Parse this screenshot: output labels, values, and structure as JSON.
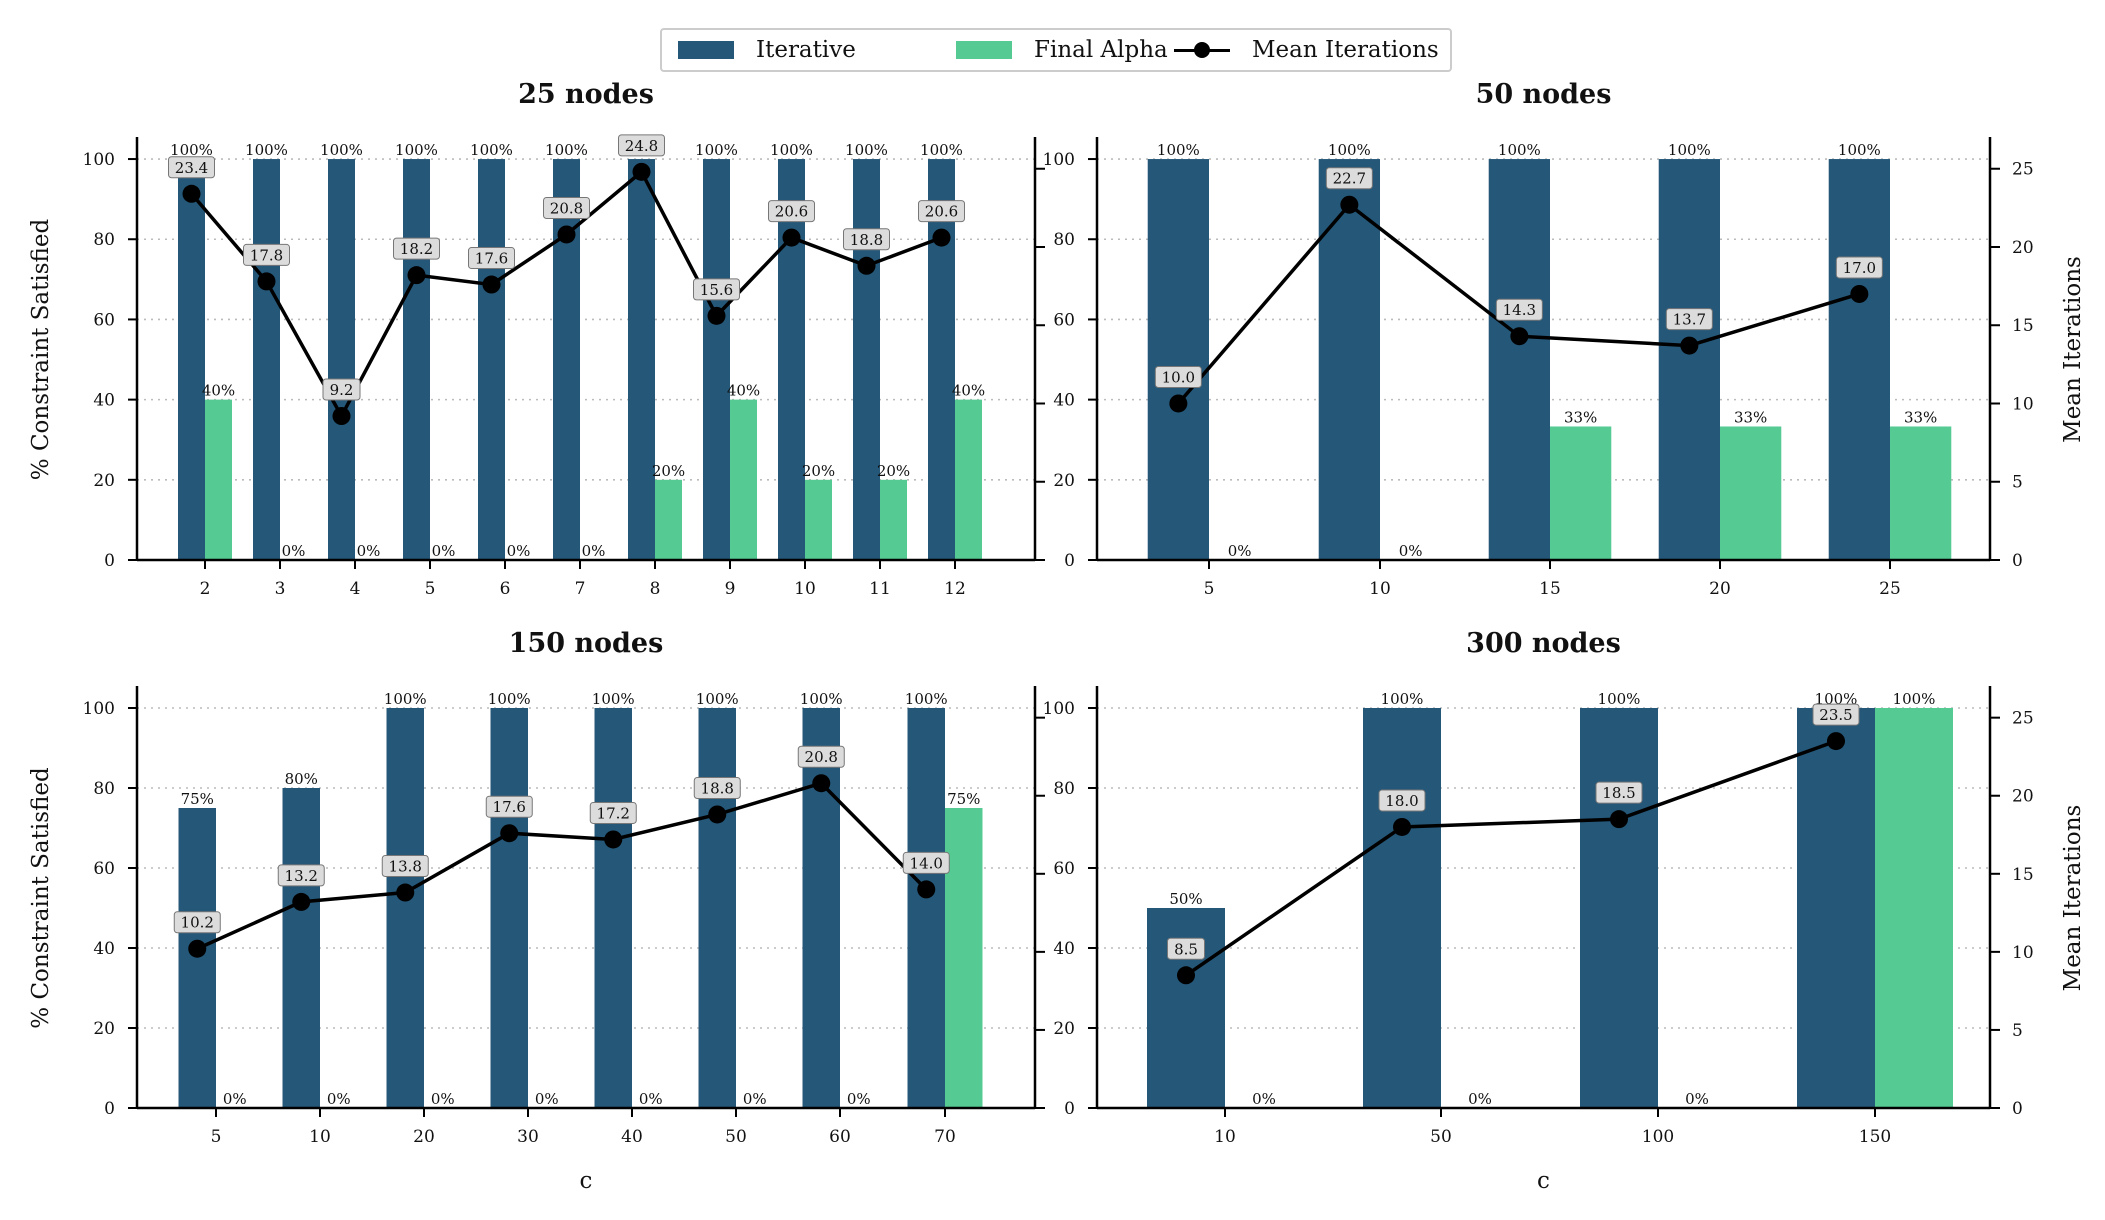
{
  "colors": {
    "iterative": "#245778",
    "final_alpha": "#55CB93",
    "line": "#000000"
  },
  "legend": {
    "iterative": "Iterative",
    "final_alpha": "Final Alpha",
    "mean_iterations": "Mean Iterations"
  },
  "chart_data": [
    {
      "type": "bar",
      "title": "25 nodes",
      "xlabel": "",
      "ylabel": "% Constraint Satisfied",
      "ylabel_right": "",
      "ylim": [
        0,
        105
      ],
      "yticks": [
        0,
        20,
        40,
        60,
        80,
        100
      ],
      "y2lim": [
        0,
        26.9
      ],
      "y2ticks": [
        0,
        5,
        10,
        15,
        20,
        25
      ],
      "categories": [
        "2",
        "3",
        "4",
        "5",
        "6",
        "7",
        "8",
        "9",
        "10",
        "11",
        "12"
      ],
      "series": [
        {
          "name": "Iterative",
          "values": [
            100,
            100,
            100,
            100,
            100,
            100,
            100,
            100,
            100,
            100,
            100
          ],
          "labels": [
            "100%",
            "100%",
            "100%",
            "100%",
            "100%",
            "100%",
            "100%",
            "100%",
            "100%",
            "100%",
            "100%"
          ]
        },
        {
          "name": "Final Alpha",
          "values": [
            40,
            0,
            0,
            0,
            0,
            0,
            20,
            40,
            20,
            20,
            40
          ],
          "labels": [
            "40%",
            "0%",
            "0%",
            "0%",
            "0%",
            "0%",
            "20%",
            "40%",
            "20%",
            "20%",
            "40%"
          ]
        },
        {
          "name": "Mean Iterations",
          "values": [
            23.4,
            17.8,
            9.2,
            18.2,
            17.6,
            20.8,
            24.8,
            15.6,
            20.6,
            18.8,
            20.6
          ],
          "labels": [
            "23.4",
            "17.8",
            "9.2",
            "18.2",
            "17.6",
            "20.8",
            "24.8",
            "15.6",
            "20.6",
            "18.8",
            "20.6"
          ]
        }
      ]
    },
    {
      "type": "bar",
      "title": "50 nodes",
      "xlabel": "",
      "ylabel": "",
      "ylabel_right": "Mean Iterations",
      "ylim": [
        0,
        105
      ],
      "yticks": [
        0,
        20,
        40,
        60,
        80,
        100
      ],
      "y2lim": [
        0,
        26.9
      ],
      "y2ticks": [
        0,
        5,
        10,
        15,
        20,
        25
      ],
      "categories": [
        "5",
        "10",
        "15",
        "20",
        "25"
      ],
      "series": [
        {
          "name": "Iterative",
          "values": [
            100,
            100,
            100,
            100,
            100
          ],
          "labels": [
            "100%",
            "100%",
            "100%",
            "100%",
            "100%"
          ]
        },
        {
          "name": "Final Alpha",
          "values": [
            0,
            0,
            33.3,
            33.3,
            33.3
          ],
          "labels": [
            "0%",
            "0%",
            "33%",
            "33%",
            "33%"
          ]
        },
        {
          "name": "Mean Iterations",
          "values": [
            10.0,
            22.7,
            14.3,
            13.7,
            17.0
          ],
          "labels": [
            "10.0",
            "22.7",
            "14.3",
            "13.7",
            "17.0"
          ]
        }
      ]
    },
    {
      "type": "bar",
      "title": "150 nodes",
      "xlabel": "c",
      "ylabel": "% Constraint Satisfied",
      "ylabel_right": "",
      "ylim": [
        0,
        105
      ],
      "yticks": [
        0,
        20,
        40,
        60,
        80,
        100
      ],
      "y2lim": [
        0,
        26.9
      ],
      "y2ticks": [
        0,
        5,
        10,
        15,
        20,
        25
      ],
      "categories": [
        "5",
        "10",
        "20",
        "30",
        "40",
        "50",
        "60",
        "70"
      ],
      "series": [
        {
          "name": "Iterative",
          "values": [
            75,
            80,
            100,
            100,
            100,
            100,
            100,
            100
          ],
          "labels": [
            "75%",
            "80%",
            "100%",
            "100%",
            "100%",
            "100%",
            "100%",
            "100%"
          ]
        },
        {
          "name": "Final Alpha",
          "values": [
            0,
            0,
            0,
            0,
            0,
            0,
            0,
            75
          ],
          "labels": [
            "0%",
            "0%",
            "0%",
            "0%",
            "0%",
            "0%",
            "0%",
            "75%"
          ]
        },
        {
          "name": "Mean Iterations",
          "values": [
            10.2,
            13.2,
            13.8,
            17.6,
            17.2,
            18.8,
            20.8,
            14.0
          ],
          "labels": [
            "10.2",
            "13.2",
            "13.8",
            "17.6",
            "17.2",
            "18.8",
            "20.8",
            "14.0"
          ]
        }
      ]
    },
    {
      "type": "bar",
      "title": "300 nodes",
      "xlabel": "c",
      "ylabel": "",
      "ylabel_right": "Mean Iterations",
      "ylim": [
        0,
        105
      ],
      "yticks": [
        0,
        20,
        40,
        60,
        80,
        100
      ],
      "y2lim": [
        0,
        26.9
      ],
      "y2ticks": [
        0,
        5,
        10,
        15,
        20,
        25
      ],
      "categories": [
        "10",
        "50",
        "100",
        "150"
      ],
      "series": [
        {
          "name": "Iterative",
          "values": [
            50,
            100,
            100,
            100
          ],
          "labels": [
            "50%",
            "100%",
            "100%",
            "100%"
          ]
        },
        {
          "name": "Final Alpha",
          "values": [
            0,
            0,
            0,
            100
          ],
          "labels": [
            "0%",
            "0%",
            "0%",
            "100%"
          ]
        },
        {
          "name": "Mean Iterations",
          "values": [
            8.5,
            18.0,
            18.5,
            23.5
          ],
          "labels": [
            "8.5",
            "18.0",
            "18.5",
            "23.5"
          ]
        }
      ]
    }
  ]
}
